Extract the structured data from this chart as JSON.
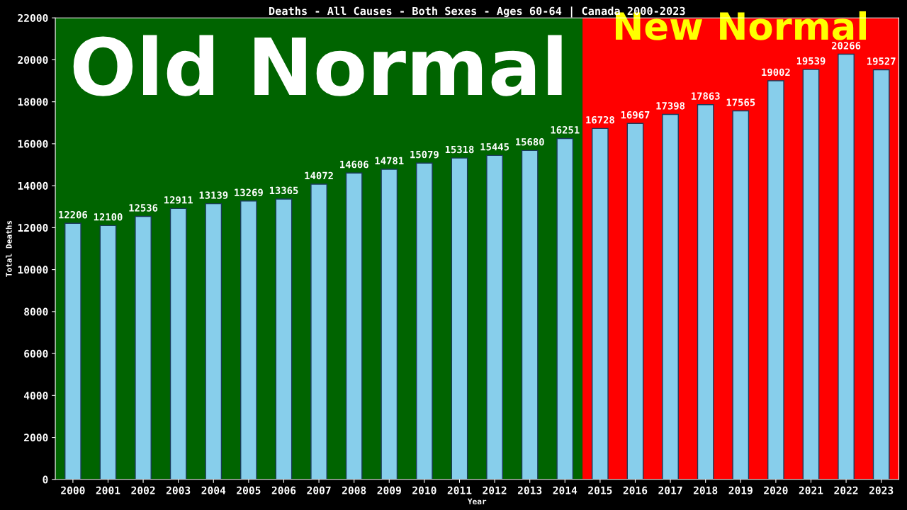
{
  "chart_data": {
    "type": "bar",
    "title": "Deaths - All Causes - Both Sexes - Ages 60-64 | Canada 2000-2023",
    "xlabel": "Year",
    "ylabel": "Total Deaths",
    "categories": [
      "2000",
      "2001",
      "2002",
      "2003",
      "2004",
      "2005",
      "2006",
      "2007",
      "2008",
      "2009",
      "2010",
      "2011",
      "2012",
      "2013",
      "2014",
      "2015",
      "2016",
      "2017",
      "2018",
      "2019",
      "2020",
      "2021",
      "2022",
      "2023"
    ],
    "values": [
      12206,
      12100,
      12536,
      12911,
      13139,
      13269,
      13365,
      14072,
      14606,
      14781,
      15079,
      15318,
      15445,
      15680,
      16251,
      16728,
      16967,
      17398,
      17863,
      17565,
      19002,
      19539,
      20266,
      19527
    ],
    "color": "#87ceeb",
    "ylim": [
      0,
      22000
    ],
    "yticks": [
      0,
      2000,
      4000,
      6000,
      8000,
      10000,
      12000,
      14000,
      16000,
      18000,
      20000,
      22000
    ],
    "grid": false,
    "data_labels": true,
    "bands": [
      {
        "axis": "x",
        "from": "2000",
        "to": "2014",
        "label": "Old Normal",
        "color": "#006400"
      },
      {
        "axis": "x",
        "from": "2015",
        "to": "2023",
        "label": "New Normal",
        "color": "#ff0000"
      }
    ]
  }
}
